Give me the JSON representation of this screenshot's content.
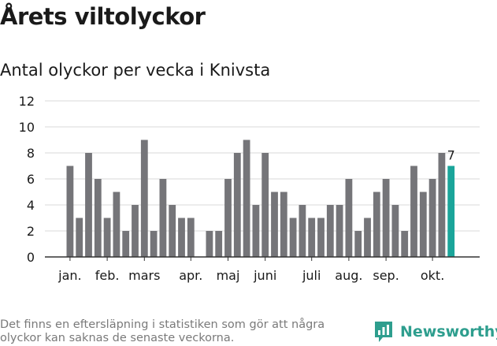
{
  "title": "Årets viltolyckor",
  "subtitle": "Antal olyckor per vecka i Knivsta",
  "footnote": "Det finns en eftersläpning i statistiken som gör att några olyckor kan saknas de senaste veckorna.",
  "brand": {
    "name": "Newsworthy",
    "icon": "newsworthy-logo-icon"
  },
  "colors": {
    "bar": "#757579",
    "highlight": "#1aa59a",
    "grid": "#d9d9d9",
    "axis": "#333333",
    "text": "#1a1a1a",
    "muted": "#7a7a7a",
    "brand": "#2e9e8e"
  },
  "chart_data": {
    "type": "bar",
    "title": "Antal olyckor per vecka i Knivsta",
    "x_tick_labels": [
      "jan.",
      "feb.",
      "mars",
      "apr.",
      "maj",
      "juni",
      "juli",
      "aug.",
      "sep.",
      "okt."
    ],
    "x_tick_week_index": [
      0,
      4,
      8,
      13,
      17,
      21,
      26,
      30,
      34,
      39
    ],
    "values": [
      7,
      3,
      8,
      6,
      3,
      5,
      2,
      4,
      9,
      2,
      6,
      4,
      3,
      3,
      null,
      2,
      2,
      6,
      8,
      9,
      4,
      8,
      5,
      5,
      3,
      4,
      3,
      3,
      4,
      4,
      6,
      2,
      3,
      5,
      6,
      4,
      2,
      7,
      5,
      6,
      8,
      7
    ],
    "highlight_index": 41,
    "highlight_label": "7",
    "yticks": [
      0,
      2,
      4,
      6,
      8,
      10,
      12
    ],
    "ylim": [
      0,
      12
    ],
    "grid": true,
    "legend": "none"
  }
}
